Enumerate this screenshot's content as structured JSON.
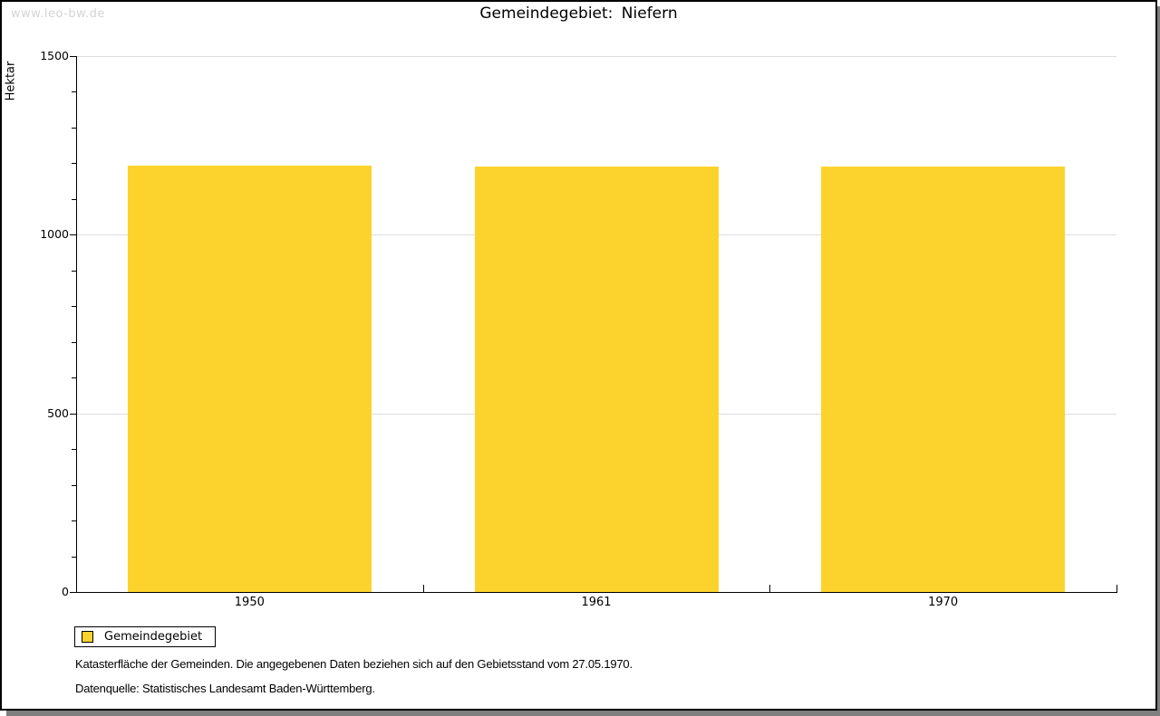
{
  "watermark": "www.leo-bw.de",
  "title": "Gemeindegebiet: Niefern",
  "chart_data": {
    "type": "bar",
    "title": "Gemeindegebiet: Niefern",
    "xlabel": "",
    "ylabel": "Hektar",
    "categories": [
      "1950",
      "1961",
      "1970"
    ],
    "series": [
      {
        "name": "Gemeindegebiet",
        "values": [
          1194,
          1190,
          1190
        ]
      }
    ],
    "ylim": [
      0,
      1500
    ],
    "yticks": [
      0,
      500,
      1000,
      1500
    ],
    "ytick_labels": [
      "0",
      "500",
      "1000",
      "1500"
    ],
    "minor_tick_interval": 100,
    "grid": true,
    "legend_position": "bottom-left",
    "bar_color": "#fcd32c",
    "gridline_color": "#dcdcdc"
  },
  "legend": {
    "items": [
      {
        "label": "Gemeindegebiet",
        "color": "#fcd32c"
      }
    ]
  },
  "footnotes": [
    "Katasterfläche der Gemeinden. Die angegebenen Daten beziehen sich auf den Gebietsstand vom 27.05.1970.",
    "Datenquelle: Statistisches Landesamt Baden-Württemberg."
  ]
}
